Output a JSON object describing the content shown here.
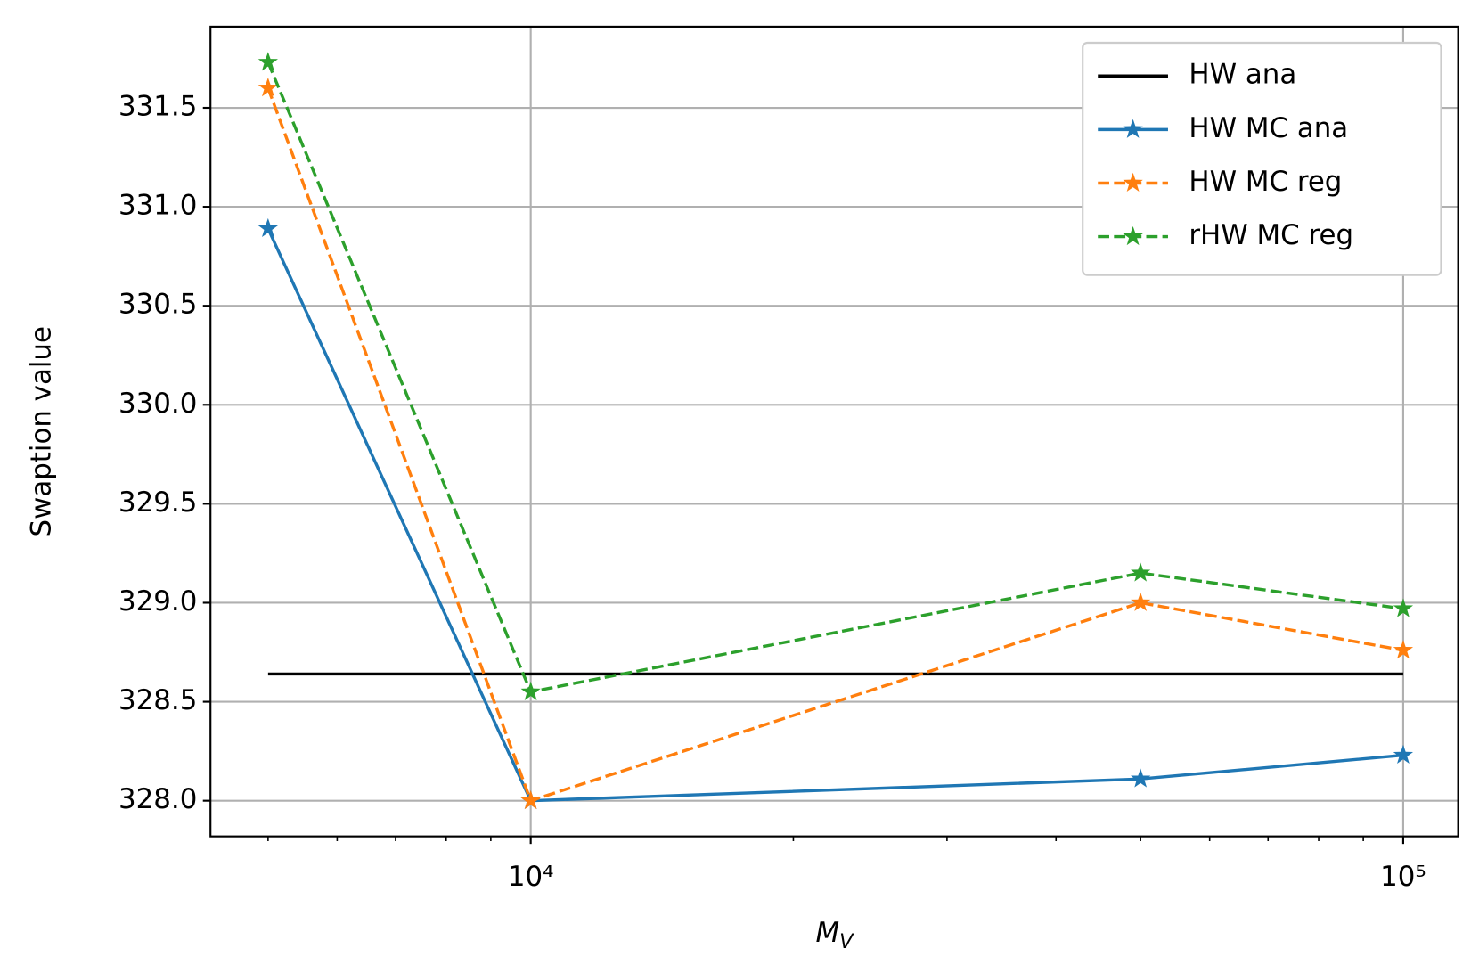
{
  "chart_data": {
    "type": "line",
    "x_label": "M_V",
    "y_label": "Swaption value",
    "x": [
      5000,
      10000,
      50000,
      100000
    ],
    "series": [
      {
        "name": "HW ana",
        "color": "#000000",
        "dash": "solid",
        "marker": false,
        "values": [
          328.64,
          328.64,
          328.64,
          328.64
        ]
      },
      {
        "name": "HW MC ana",
        "color": "#1f77b4",
        "dash": "solid",
        "marker": true,
        "values": [
          330.89,
          328.0,
          328.11,
          328.23
        ]
      },
      {
        "name": "HW MC reg",
        "color": "#ff7f0e",
        "dash": "dashed",
        "marker": true,
        "values": [
          331.6,
          328.0,
          329.0,
          328.76
        ]
      },
      {
        "name": "rHW MC reg",
        "color": "#2ca02c",
        "dash": "dashed",
        "marker": true,
        "values": [
          331.73,
          328.55,
          329.15,
          328.97
        ]
      }
    ],
    "xscale": "log",
    "xlim": [
      4295,
      115600
    ],
    "ylim": [
      327.82,
      331.91
    ],
    "xticks": [
      {
        "value": 10000,
        "label": "10⁴"
      },
      {
        "value": 100000,
        "label": "10⁵"
      }
    ],
    "xminorticks": [
      5000,
      6000,
      7000,
      8000,
      9000,
      20000,
      30000,
      40000,
      50000,
      60000,
      70000,
      80000,
      90000
    ],
    "yticks": [
      {
        "value": 328.0,
        "label": "328.0"
      },
      328.5,
      {
        "value": 329.0,
        "label": "329.0"
      },
      329.5,
      {
        "value": 330.0,
        "label": "330.0"
      },
      330.5,
      {
        "value": 331.0,
        "label": "331.0"
      },
      331.5
    ],
    "grid": true,
    "legend": "upper right"
  }
}
